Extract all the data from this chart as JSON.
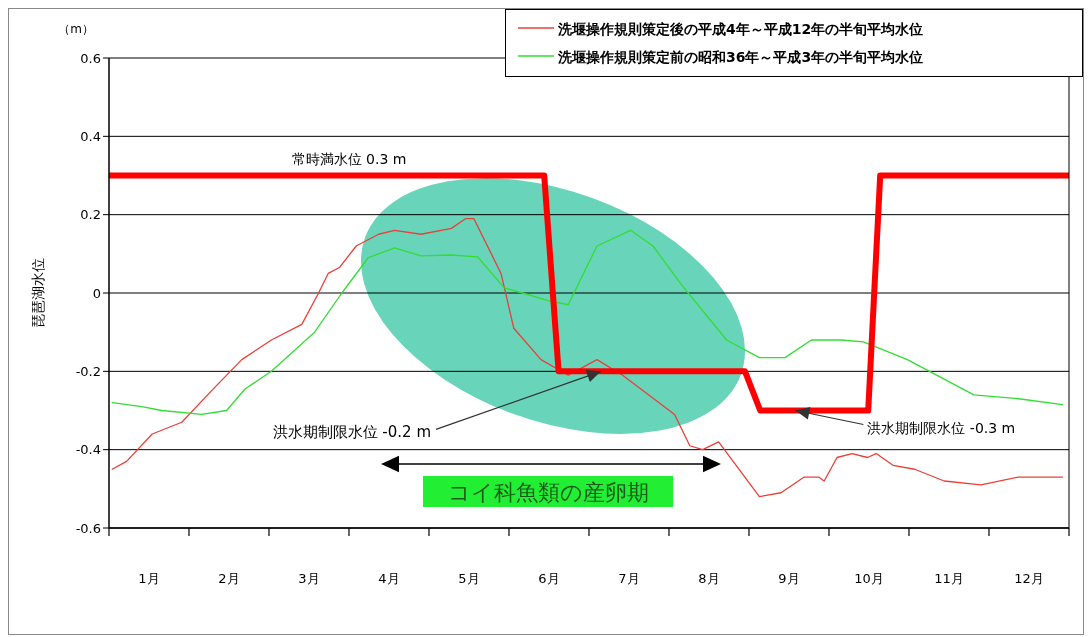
{
  "chart_data": {
    "type": "line",
    "ylabel": "琵琶湖水位",
    "xlim": [
      0,
      12
    ],
    "xticks": [
      {
        "value": 0,
        "label": null
      },
      {
        "value": 0.5,
        "label": "1月"
      },
      {
        "value": 1,
        "label": null
      },
      {
        "value": 1.5,
        "label": "2月"
      },
      {
        "value": 2,
        "label": null
      },
      {
        "value": 2.5,
        "label": "3月"
      },
      {
        "value": 3,
        "label": null
      },
      {
        "value": 3.5,
        "label": "4月"
      },
      {
        "value": 4,
        "label": null
      },
      {
        "value": 4.5,
        "label": "5月"
      },
      {
        "value": 5,
        "label": null
      },
      {
        "value": 5.5,
        "label": "6月"
      },
      {
        "value": 6,
        "label": null
      },
      {
        "value": 6.5,
        "label": "7月"
      },
      {
        "value": 7,
        "label": null
      },
      {
        "value": 7.5,
        "label": "8月"
      },
      {
        "value": 8,
        "label": null
      },
      {
        "value": 8.5,
        "label": "9月"
      },
      {
        "value": 9,
        "label": null
      },
      {
        "value": 9.5,
        "label": "10月"
      },
      {
        "value": 10,
        "label": null
      },
      {
        "value": 10.5,
        "label": "11月"
      },
      {
        "value": 11,
        "label": null
      },
      {
        "value": 11.5,
        "label": "12月"
      },
      {
        "value": 12,
        "label": null
      }
    ],
    "ylim": [
      -0.6,
      0.6
    ],
    "yticks": [
      -0.6,
      -0.4,
      -0.2,
      0,
      0.2,
      0.4,
      0.6
    ],
    "grid": "y",
    "legend": "top right",
    "series": [
      {
        "name": "洗堰操作規則策定後の平成4年～平成12年の半旬平均水位",
        "color": "#e8403a",
        "x": [
          0.04,
          0.22,
          0.54,
          0.91,
          1.28,
          1.66,
          2.03,
          2.41,
          2.62,
          2.74,
          2.88,
          3.09,
          3.37,
          3.57,
          3.9,
          4.28,
          4.46,
          4.56,
          4.9,
          5.06,
          5.4,
          5.74,
          6.1,
          6.42,
          7.07,
          7.26,
          7.42,
          7.62,
          8.13,
          8.4,
          8.69,
          8.87,
          8.94,
          9.1,
          9.29,
          9.48,
          9.59,
          9.8,
          10.07,
          10.44,
          10.9,
          11.37,
          11.6,
          11.92
        ],
        "values": [
          -0.45,
          -0.43,
          -0.36,
          -0.33,
          -0.25,
          -0.17,
          -0.12,
          -0.08,
          0.0,
          0.05,
          0.065,
          0.12,
          0.15,
          0.16,
          0.15,
          0.165,
          0.19,
          0.19,
          0.05,
          -0.09,
          -0.17,
          -0.21,
          -0.17,
          -0.21,
          -0.31,
          -0.39,
          -0.4,
          -0.38,
          -0.52,
          -0.51,
          -0.47,
          -0.47,
          -0.48,
          -0.42,
          -0.41,
          -0.42,
          -0.41,
          -0.44,
          -0.45,
          -0.48,
          -0.49,
          -0.47,
          -0.47,
          -0.47
        ]
      },
      {
        "name": "洗堰操作規則策定前の昭和36年～平成3年の半旬平均水位",
        "color": "#33dd33",
        "x": [
          0.04,
          0.41,
          0.66,
          1.16,
          1.47,
          1.7,
          2.03,
          2.57,
          2.91,
          3.24,
          3.57,
          3.9,
          4.28,
          4.61,
          4.94,
          5.17,
          5.5,
          5.74,
          6.1,
          6.52,
          6.8,
          7.16,
          7.72,
          8.13,
          8.45,
          8.78,
          9.15,
          9.43,
          9.98,
          10.81,
          11.37,
          11.92
        ],
        "values": [
          -0.28,
          -0.29,
          -0.3,
          -0.31,
          -0.3,
          -0.245,
          -0.2,
          -0.1,
          0.0,
          0.09,
          0.115,
          0.095,
          0.097,
          0.092,
          0.013,
          0.0,
          -0.02,
          -0.03,
          0.12,
          0.16,
          0.12,
          0.02,
          -0.12,
          -0.165,
          -0.165,
          -0.12,
          -0.12,
          -0.125,
          -0.17,
          -0.26,
          -0.27,
          -0.285
        ]
      },
      {
        "color": "#ff0000",
        "x": [
          0,
          5.44,
          5.62,
          7.95,
          8.14,
          9.49,
          9.64,
          12
        ],
        "values": [
          0.3,
          0.3,
          -0.2,
          -0.2,
          -0.3,
          -0.3,
          0.3,
          0.3
        ]
      }
    ],
    "annotations": [
      "（m）",
      {
        "text": "常時満水位 0.3 m",
        "x": 3,
        "y": 0.3
      },
      {
        "text": "洪水期制限水位 -0.2 m",
        "x": 6.15,
        "y": -0.2
      },
      {
        "text": "洪水期制限水位 -0.3 m",
        "x": 8.58,
        "y": -0.3
      },
      "コイ科魚類の産卵期"
    ]
  }
}
